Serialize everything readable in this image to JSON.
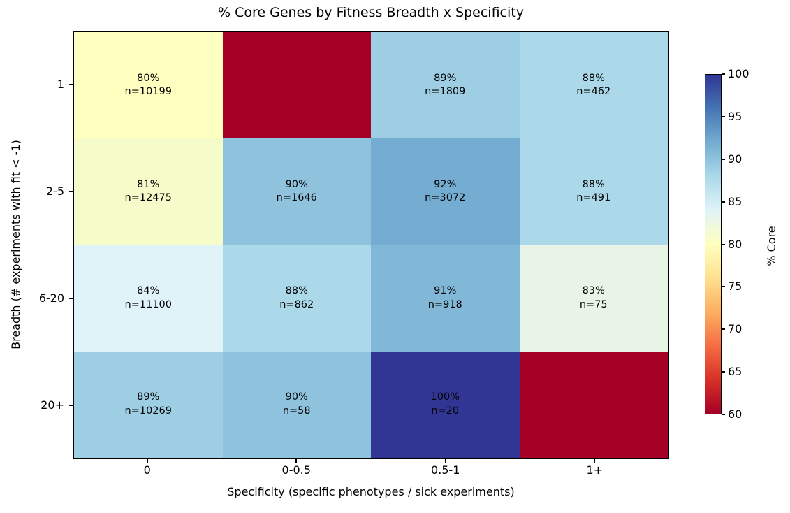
{
  "chart_data": {
    "type": "heatmap",
    "title": "% Core Genes by Fitness Breadth x Specificity",
    "xlabel": "Specificity (specific phenotypes / sick experiments)",
    "ylabel": "Breadth (# experiments with fit < -1)",
    "x_categories": [
      "0",
      "0-0.5",
      "0.5-1",
      "1+"
    ],
    "y_categories": [
      "1",
      "2-5",
      "6-20",
      "20+"
    ],
    "values_pct": [
      [
        80,
        null,
        89,
        88
      ],
      [
        81,
        90,
        92,
        88
      ],
      [
        84,
        88,
        91,
        83
      ],
      [
        89,
        90,
        100,
        null
      ]
    ],
    "counts_n": [
      [
        10199,
        null,
        1809,
        462
      ],
      [
        12475,
        1646,
        3072,
        491
      ],
      [
        11100,
        862,
        918,
        75
      ],
      [
        10269,
        58,
        20,
        null
      ]
    ],
    "cell_colors": [
      [
        "#ffffbf",
        "#a50026",
        "#9dcee3",
        "#abd9e9"
      ],
      [
        "#f6fbca",
        "#8fc3dd",
        "#74add1",
        "#abd9e9"
      ],
      [
        "#e0f3f8",
        "#abd9e9",
        "#82b8d7",
        "#e8f5e6"
      ],
      [
        "#9dcee3",
        "#8fc3dd",
        "#313695",
        "#a50026"
      ]
    ],
    "missing_cell_color": "#a50026",
    "grid": false,
    "colorbar": {
      "label": "% Core",
      "vmin": 60,
      "vmax": 100,
      "ticks": [
        100,
        95,
        90,
        85,
        80,
        75,
        70,
        65,
        60
      ],
      "colormap": "RdYlBu",
      "gradient_top_to_bottom": [
        "#313695",
        "#4575b4",
        "#74add1",
        "#abd9e9",
        "#e0f3f8",
        "#ffffbf",
        "#fee090",
        "#fdae61",
        "#f46d43",
        "#d73027",
        "#a50026"
      ]
    }
  }
}
